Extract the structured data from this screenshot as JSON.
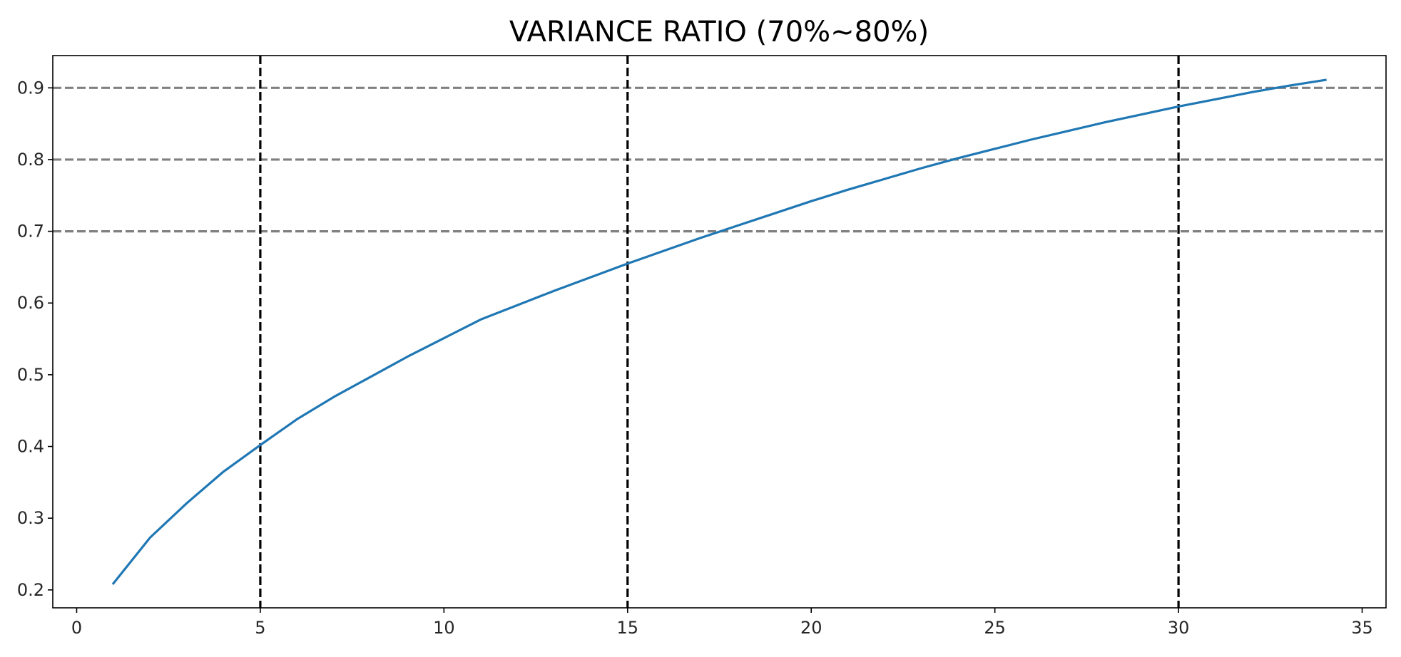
{
  "chart_data": {
    "type": "line",
    "title": "VARIANCE RATIO (70%~80%)",
    "xlabel": "",
    "ylabel": "",
    "xlim": [
      -0.65,
      35.65
    ],
    "ylim": [
      0.175,
      0.945
    ],
    "grid": false,
    "x_ticks": [
      0,
      5,
      10,
      15,
      20,
      25,
      30,
      35
    ],
    "y_ticks": [
      0.2,
      0.3,
      0.4,
      0.5,
      0.6,
      0.7,
      0.8,
      0.9
    ],
    "x_tick_labels": [
      "0",
      "5",
      "10",
      "15",
      "20",
      "25",
      "30",
      "35"
    ],
    "y_tick_labels": [
      "0.2",
      "0.3",
      "0.4",
      "0.5",
      "0.6",
      "0.7",
      "0.8",
      "0.9"
    ],
    "hlines": [
      {
        "y": 0.7,
        "color": "#808080",
        "style": "dashed"
      },
      {
        "y": 0.8,
        "color": "#808080",
        "style": "dashed"
      },
      {
        "y": 0.9,
        "color": "#808080",
        "style": "dashed"
      }
    ],
    "vlines": [
      {
        "x": 5,
        "color": "#000000",
        "style": "dashed"
      },
      {
        "x": 15,
        "color": "#000000",
        "style": "dashed"
      },
      {
        "x": 30,
        "color": "#000000",
        "style": "dashed"
      }
    ],
    "series": [
      {
        "color": "#1f77b4",
        "x": [
          1,
          2,
          3,
          4,
          5,
          6,
          7,
          8,
          9,
          10,
          11,
          12,
          13,
          14,
          15,
          16,
          17,
          18,
          19,
          20,
          21,
          22,
          23,
          24,
          25,
          26,
          27,
          28,
          29,
          30,
          31,
          32,
          33,
          34
        ],
        "values": [
          0.209,
          0.273,
          0.321,
          0.365,
          0.402,
          0.438,
          0.469,
          0.497,
          0.525,
          0.551,
          0.577,
          0.597,
          0.617,
          0.636,
          0.655,
          0.673,
          0.691,
          0.708,
          0.725,
          0.742,
          0.758,
          0.773,
          0.788,
          0.802,
          0.815,
          0.828,
          0.84,
          0.852,
          0.863,
          0.874,
          0.884,
          0.894,
          0.903,
          0.911
        ]
      }
    ]
  }
}
